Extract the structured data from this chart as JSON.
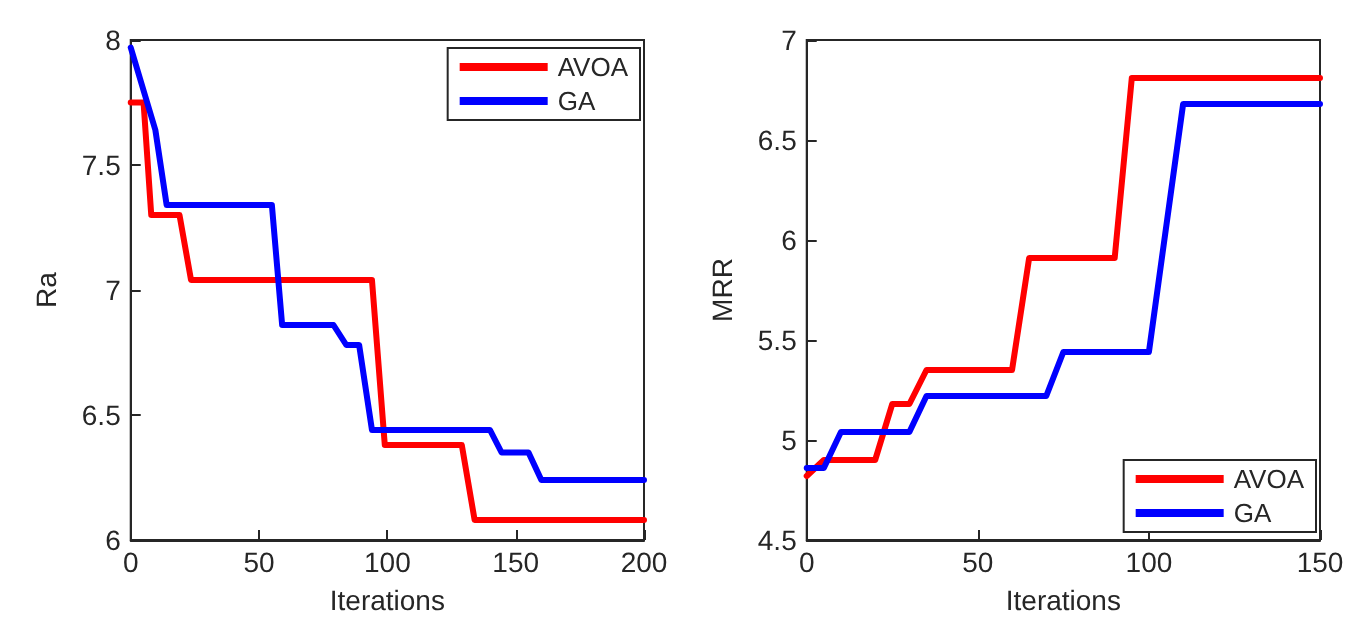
{
  "chart_data": [
    {
      "type": "line",
      "xlabel": "Iterations",
      "ylabel": "Ra",
      "xlim": [
        0,
        200
      ],
      "xticks": [
        0,
        50,
        100,
        150,
        200
      ],
      "ylim": [
        6,
        8
      ],
      "yticks": [
        6,
        6.5,
        7,
        7.5,
        8
      ],
      "grid": false,
      "legend": "top right",
      "marker": "none",
      "line_style": "solid",
      "series": [
        {
          "name": "AVOA",
          "color": "#ff0000",
          "x": [
            0,
            5,
            8,
            19,
            23.5,
            94,
            99,
            129,
            134,
            200
          ],
          "values": [
            7.75,
            7.75,
            7.3,
            7.3,
            7.04,
            7.04,
            6.38,
            6.38,
            6.08,
            6.08
          ]
        },
        {
          "name": "GA",
          "color": "#0000ff",
          "x": [
            0,
            9.6,
            14,
            55,
            59,
            79,
            84,
            89,
            94,
            140,
            144.5,
            155,
            160,
            200
          ],
          "values": [
            7.97,
            7.64,
            7.34,
            7.34,
            6.86,
            6.86,
            6.78,
            6.78,
            6.44,
            6.44,
            6.35,
            6.35,
            6.24,
            6.24
          ]
        }
      ]
    },
    {
      "type": "line",
      "xlabel": "Iterations",
      "ylabel": "MRR",
      "xlim": [
        0,
        150
      ],
      "xticks": [
        0,
        50,
        100,
        150
      ],
      "ylim": [
        4.5,
        7
      ],
      "yticks": [
        4.5,
        5,
        5.5,
        6,
        6.5,
        7
      ],
      "grid": false,
      "legend": "bottom right",
      "marker": "none",
      "line_style": "solid",
      "series": [
        {
          "name": "AVOA",
          "color": "#ff0000",
          "x": [
            0,
            5,
            20,
            25,
            30,
            35,
            60,
            65,
            90,
            95,
            150
          ],
          "values": [
            4.82,
            4.9,
            4.9,
            5.18,
            5.18,
            5.35,
            5.35,
            5.91,
            5.91,
            6.81,
            6.81
          ]
        },
        {
          "name": "GA",
          "color": "#0000ff",
          "x": [
            0,
            5,
            10,
            30,
            35,
            70,
            75,
            100,
            110,
            150
          ],
          "values": [
            4.86,
            4.86,
            5.04,
            5.04,
            5.22,
            5.22,
            5.44,
            5.44,
            6.68,
            6.68
          ]
        }
      ]
    }
  ]
}
